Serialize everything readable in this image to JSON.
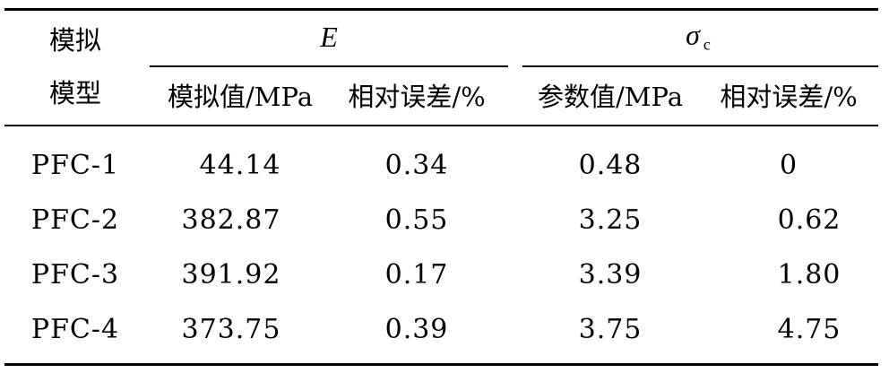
{
  "table": {
    "header": {
      "model_col_line1": "模拟",
      "model_col_line2": "模型",
      "group_e": "E",
      "group_sigma_symbol": "σ",
      "group_sigma_sub": "c",
      "sub_cols": [
        "模拟值/MPa",
        "相对误差/%",
        "参数值/MPa",
        "相对误差/%"
      ]
    },
    "rows": [
      {
        "model": "PFC-1",
        "e_value": "44.14",
        "e_error": "0.34",
        "sigma_value": "0.48",
        "sigma_error": "0"
      },
      {
        "model": "PFC-2",
        "e_value": "382.87",
        "e_error": "0.55",
        "sigma_value": "3.25",
        "sigma_error": "0.62"
      },
      {
        "model": "PFC-3",
        "e_value": "391.92",
        "e_error": "0.17",
        "sigma_value": "3.39",
        "sigma_error": "1.80"
      },
      {
        "model": "PFC-4",
        "e_value": "373.75",
        "e_error": "0.39",
        "sigma_value": "3.75",
        "sigma_error": "4.75"
      }
    ]
  }
}
